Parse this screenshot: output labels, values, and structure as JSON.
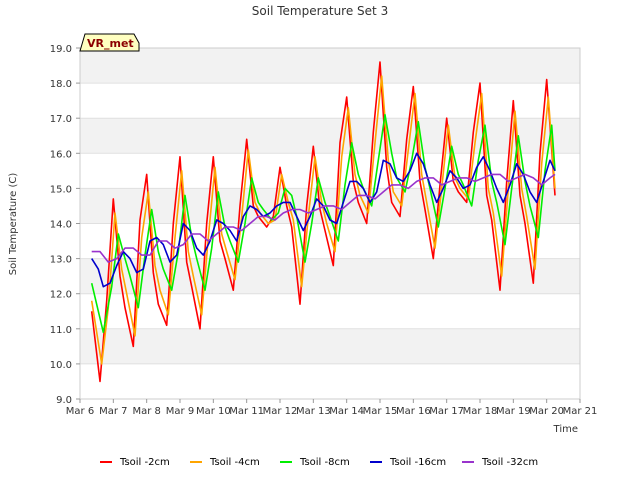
{
  "chart_data": {
    "type": "line",
    "title": "Soil Temperature Set 3",
    "xlabel": "Time",
    "ylabel": "Soil Temperature (C)",
    "badge": "VR_met",
    "ylim": [
      9.0,
      19.0
    ],
    "xlim": [
      6,
      21
    ],
    "grid": true,
    "legend_position": "bottom",
    "x_ticks": [
      {
        "value": 6,
        "label": "Mar 6"
      },
      {
        "value": 7,
        "label": "Mar 7"
      },
      {
        "value": 8,
        "label": "Mar 8"
      },
      {
        "value": 9,
        "label": "Mar 9"
      },
      {
        "value": 10,
        "label": "Mar 10"
      },
      {
        "value": 11,
        "label": "Mar 11"
      },
      {
        "value": 12,
        "label": "Mar 12"
      },
      {
        "value": 13,
        "label": "Mar 13"
      },
      {
        "value": 14,
        "label": "Mar 14"
      },
      {
        "value": 15,
        "label": "Mar 15"
      },
      {
        "value": 16,
        "label": "Mar 16"
      },
      {
        "value": 17,
        "label": "Mar 17"
      },
      {
        "value": 18,
        "label": "Mar 18"
      },
      {
        "value": 19,
        "label": "Mar 19"
      },
      {
        "value": 20,
        "label": "Mar 20"
      },
      {
        "value": 21,
        "label": "Mar 21"
      }
    ],
    "y_ticks": [
      {
        "value": 9,
        "label": "9.0"
      },
      {
        "value": 10,
        "label": "10.0"
      },
      {
        "value": 11,
        "label": "11.0"
      },
      {
        "value": 12,
        "label": "12.0"
      },
      {
        "value": 13,
        "label": "13.0"
      },
      {
        "value": 14,
        "label": "14.0"
      },
      {
        "value": 15,
        "label": "15.0"
      },
      {
        "value": 16,
        "label": "16.0"
      },
      {
        "value": 17,
        "label": "17.0"
      },
      {
        "value": 18,
        "label": "18.0"
      },
      {
        "value": 19,
        "label": "19.0"
      }
    ],
    "series": [
      {
        "name": "Tsoil -2cm",
        "color": "#ff0000",
        "x": [
          6.35,
          6.6,
          6.8,
          7.0,
          7.2,
          7.35,
          7.6,
          7.8,
          8.0,
          8.2,
          8.35,
          8.6,
          8.8,
          9.0,
          9.2,
          9.35,
          9.6,
          9.8,
          10.0,
          10.2,
          10.35,
          10.6,
          10.8,
          11.0,
          11.2,
          11.35,
          11.6,
          11.8,
          12.0,
          12.2,
          12.35,
          12.6,
          12.8,
          13.0,
          13.2,
          13.35,
          13.6,
          13.8,
          14.0,
          14.2,
          14.35,
          14.6,
          14.8,
          15.0,
          15.2,
          15.35,
          15.6,
          15.8,
          16.0,
          16.2,
          16.35,
          16.6,
          16.8,
          17.0,
          17.2,
          17.35,
          17.6,
          17.8,
          18.0,
          18.2,
          18.35,
          18.6,
          18.8,
          19.0,
          19.2,
          19.35,
          19.6,
          19.8,
          20.0,
          20.25
        ],
        "values": [
          11.5,
          9.5,
          11.8,
          14.7,
          12.5,
          11.6,
          10.5,
          14.1,
          15.4,
          12.6,
          11.7,
          11.1,
          14.0,
          15.9,
          12.9,
          12.2,
          11.0,
          14.0,
          15.9,
          13.5,
          13.0,
          12.1,
          14.5,
          16.4,
          14.5,
          14.2,
          13.9,
          14.2,
          15.6,
          14.5,
          13.9,
          11.7,
          14.5,
          16.2,
          14.4,
          13.8,
          12.8,
          16.3,
          17.6,
          15.2,
          14.6,
          14.0,
          16.6,
          18.6,
          15.6,
          14.6,
          14.2,
          16.4,
          17.9,
          15.2,
          14.4,
          13.0,
          15.1,
          17.0,
          15.2,
          14.9,
          14.6,
          16.6,
          18.0,
          14.8,
          14.1,
          12.1,
          15.2,
          17.5,
          14.8,
          14.0,
          12.3,
          16.0,
          18.1,
          14.8
        ]
      },
      {
        "name": "Tsoil -4cm",
        "color": "#ffa500",
        "x": [
          6.35,
          6.65,
          6.85,
          7.05,
          7.25,
          7.4,
          7.65,
          7.85,
          8.05,
          8.25,
          8.4,
          8.65,
          8.85,
          9.05,
          9.25,
          9.4,
          9.65,
          9.85,
          10.05,
          10.25,
          10.4,
          10.65,
          10.85,
          11.05,
          11.25,
          11.4,
          11.65,
          11.85,
          12.05,
          12.25,
          12.4,
          12.65,
          12.85,
          13.05,
          13.25,
          13.4,
          13.65,
          13.85,
          14.05,
          14.25,
          14.4,
          14.65,
          14.85,
          15.05,
          15.25,
          15.4,
          15.65,
          15.85,
          16.05,
          16.25,
          16.4,
          16.65,
          16.85,
          17.05,
          17.25,
          17.4,
          17.65,
          17.85,
          18.05,
          18.25,
          18.4,
          18.65,
          18.85,
          19.05,
          19.25,
          19.4,
          19.65,
          19.85,
          20.05,
          20.25
        ],
        "values": [
          11.8,
          10.0,
          11.6,
          14.3,
          12.7,
          12.0,
          10.8,
          13.6,
          14.9,
          12.8,
          12.1,
          11.4,
          13.6,
          15.5,
          13.2,
          12.5,
          11.4,
          13.6,
          15.6,
          13.7,
          13.2,
          12.4,
          14.2,
          16.1,
          14.6,
          14.3,
          14.0,
          14.1,
          15.4,
          14.6,
          14.1,
          12.2,
          14.2,
          15.9,
          14.6,
          14.0,
          13.2,
          15.9,
          17.3,
          15.4,
          14.8,
          14.3,
          16.3,
          18.2,
          15.8,
          14.9,
          14.5,
          16.1,
          17.7,
          15.4,
          14.6,
          13.3,
          15.0,
          16.8,
          15.3,
          15.0,
          14.7,
          16.3,
          17.7,
          15.0,
          14.3,
          12.5,
          15.0,
          17.2,
          15.0,
          14.2,
          12.7,
          15.7,
          17.6,
          15.0
        ]
      },
      {
        "name": "Tsoil -8cm",
        "color": "#00ee00",
        "x": [
          6.35,
          6.7,
          6.95,
          7.15,
          7.35,
          7.5,
          7.75,
          7.95,
          8.15,
          8.35,
          8.5,
          8.75,
          8.95,
          9.15,
          9.35,
          9.5,
          9.75,
          9.95,
          10.15,
          10.35,
          10.5,
          10.75,
          10.95,
          11.15,
          11.35,
          11.5,
          11.75,
          11.95,
          12.15,
          12.35,
          12.5,
          12.75,
          12.95,
          13.15,
          13.35,
          13.5,
          13.75,
          13.95,
          14.15,
          14.35,
          14.5,
          14.75,
          14.95,
          15.15,
          15.35,
          15.5,
          15.75,
          15.95,
          16.15,
          16.35,
          16.5,
          16.75,
          16.95,
          17.15,
          17.35,
          17.5,
          17.75,
          17.95,
          18.15,
          18.35,
          18.5,
          18.75,
          18.95,
          19.15,
          19.35,
          19.5,
          19.75,
          19.95,
          20.15,
          20.25
        ],
        "values": [
          12.3,
          10.9,
          12.2,
          13.7,
          13.0,
          12.5,
          11.6,
          13.1,
          14.4,
          13.2,
          12.7,
          12.1,
          13.2,
          14.8,
          13.6,
          13.0,
          12.1,
          13.3,
          14.9,
          13.9,
          13.5,
          12.9,
          14.0,
          15.3,
          14.6,
          14.4,
          14.1,
          14.3,
          15.0,
          14.8,
          14.2,
          12.9,
          14.0,
          15.3,
          14.6,
          14.2,
          13.5,
          15.1,
          16.3,
          15.4,
          15.0,
          14.5,
          15.8,
          17.1,
          16.0,
          15.3,
          14.9,
          15.8,
          16.9,
          15.6,
          15.0,
          13.9,
          15.0,
          16.2,
          15.4,
          15.1,
          14.5,
          15.8,
          16.8,
          15.2,
          14.6,
          13.4,
          15.0,
          16.5,
          15.2,
          14.5,
          13.6,
          15.5,
          16.8,
          15.5
        ]
      },
      {
        "name": "Tsoil -16cm",
        "color": "#0000cc",
        "x": [
          6.35,
          6.55,
          6.7,
          6.9,
          7.1,
          7.3,
          7.5,
          7.7,
          7.9,
          8.1,
          8.3,
          8.5,
          8.7,
          8.9,
          9.1,
          9.3,
          9.5,
          9.7,
          9.9,
          10.1,
          10.3,
          10.5,
          10.7,
          10.9,
          11.1,
          11.3,
          11.5,
          11.7,
          11.9,
          12.1,
          12.3,
          12.5,
          12.7,
          12.9,
          13.1,
          13.3,
          13.5,
          13.7,
          13.9,
          14.1,
          14.3,
          14.5,
          14.7,
          14.9,
          15.1,
          15.3,
          15.5,
          15.7,
          15.9,
          16.1,
          16.3,
          16.5,
          16.7,
          16.9,
          17.1,
          17.3,
          17.5,
          17.7,
          17.9,
          18.1,
          18.3,
          18.5,
          18.7,
          18.9,
          19.1,
          19.3,
          19.5,
          19.7,
          19.9,
          20.1,
          20.25
        ],
        "values": [
          13.0,
          12.7,
          12.2,
          12.3,
          12.8,
          13.2,
          13.0,
          12.6,
          12.7,
          13.5,
          13.6,
          13.4,
          12.9,
          13.1,
          14.0,
          13.8,
          13.3,
          13.1,
          13.5,
          14.1,
          14.0,
          13.8,
          13.5,
          14.2,
          14.5,
          14.4,
          14.2,
          14.3,
          14.5,
          14.6,
          14.6,
          14.2,
          13.8,
          14.2,
          14.7,
          14.5,
          14.1,
          14.0,
          14.6,
          15.2,
          15.2,
          15.0,
          14.6,
          14.9,
          15.8,
          15.7,
          15.3,
          15.2,
          15.5,
          16.0,
          15.7,
          15.1,
          14.6,
          15.0,
          15.5,
          15.3,
          15.0,
          15.1,
          15.6,
          15.9,
          15.5,
          15.0,
          14.6,
          15.1,
          15.7,
          15.4,
          14.9,
          14.6,
          15.2,
          15.8,
          15.5
        ]
      },
      {
        "name": "Tsoil -32cm",
        "color": "#9933cc",
        "x": [
          6.35,
          6.6,
          6.85,
          7.1,
          7.35,
          7.6,
          7.85,
          8.1,
          8.35,
          8.6,
          8.85,
          9.1,
          9.35,
          9.6,
          9.85,
          10.1,
          10.35,
          10.6,
          10.85,
          11.1,
          11.35,
          11.6,
          11.85,
          12.1,
          12.35,
          12.6,
          12.85,
          13.1,
          13.35,
          13.6,
          13.85,
          14.1,
          14.35,
          14.6,
          14.85,
          15.1,
          15.35,
          15.6,
          15.85,
          16.1,
          16.35,
          16.6,
          16.85,
          17.1,
          17.35,
          17.6,
          17.85,
          18.1,
          18.35,
          18.6,
          18.85,
          19.1,
          19.35,
          19.6,
          19.85,
          20.1,
          20.25
        ],
        "values": [
          13.2,
          13.2,
          12.9,
          13.0,
          13.3,
          13.3,
          13.1,
          13.1,
          13.5,
          13.5,
          13.3,
          13.4,
          13.7,
          13.7,
          13.5,
          13.7,
          13.9,
          13.9,
          13.8,
          14.0,
          14.2,
          14.2,
          14.1,
          14.3,
          14.4,
          14.4,
          14.3,
          14.4,
          14.5,
          14.5,
          14.4,
          14.6,
          14.8,
          14.8,
          14.7,
          14.9,
          15.1,
          15.1,
          15.0,
          15.2,
          15.3,
          15.3,
          15.1,
          15.2,
          15.3,
          15.3,
          15.2,
          15.3,
          15.4,
          15.4,
          15.2,
          15.3,
          15.4,
          15.3,
          15.1,
          15.3,
          15.4
        ]
      }
    ]
  }
}
